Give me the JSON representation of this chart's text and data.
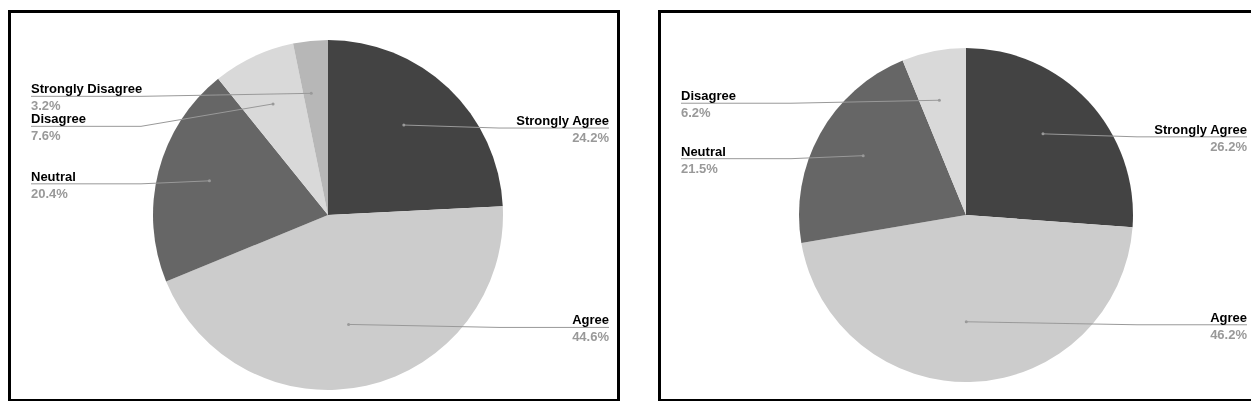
{
  "chart_data": [
    {
      "type": "pie",
      "categories": [
        "Strongly Agree",
        "Agree",
        "Neutral",
        "Disagree",
        "Strongly Disagree"
      ],
      "values": [
        24.2,
        44.6,
        20.4,
        7.6,
        3.2
      ],
      "colors": [
        "#434343",
        "#cccccc",
        "#666666",
        "#d9d9d9",
        "#b7b7b7"
      ],
      "value_labels": [
        "24.2%",
        "44.6%",
        "20.4%",
        "7.6%",
        "3.2%"
      ]
    },
    {
      "type": "pie",
      "categories": [
        "Strongly Agree",
        "Agree",
        "Neutral",
        "Disagree"
      ],
      "values": [
        26.2,
        46.2,
        21.5,
        6.2
      ],
      "colors": [
        "#434343",
        "#cccccc",
        "#666666",
        "#d9d9d9"
      ],
      "value_labels": [
        "26.2%",
        "46.2%",
        "21.5%",
        "6.2%"
      ]
    }
  ]
}
